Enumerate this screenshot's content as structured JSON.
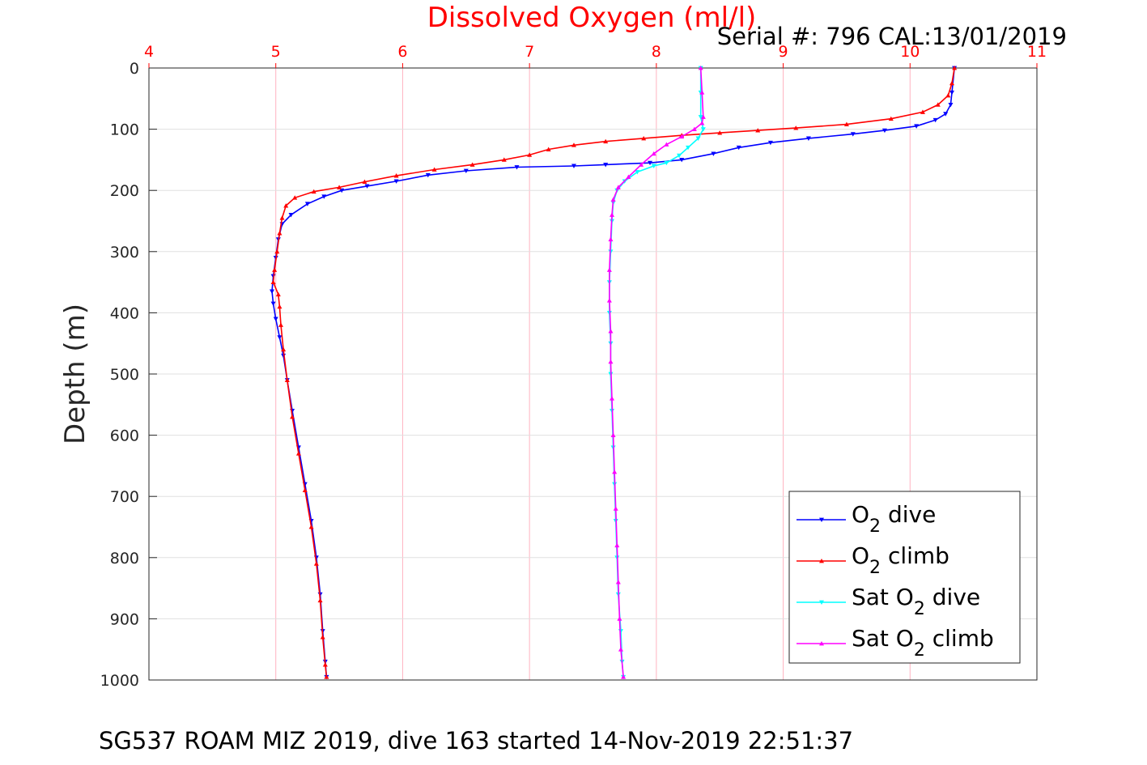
{
  "chart_data": {
    "type": "scatter",
    "title": "Dissolved Oxygen (ml/l)",
    "ylabel": "Depth (m)",
    "xlim": [
      4,
      11
    ],
    "ylim": [
      1000,
      0
    ],
    "y_inverted": true,
    "x_axis_position": "top",
    "x_ticks": [
      "4",
      "5",
      "6",
      "7",
      "8",
      "9",
      "10",
      "11"
    ],
    "y_ticks": [
      "0",
      "100",
      "200",
      "300",
      "400",
      "500",
      "600",
      "700",
      "800",
      "900",
      "1000"
    ],
    "grid": true,
    "legend_position": "bottom-right",
    "series": [
      {
        "name": "O2 dive",
        "legend_base": "O",
        "legend_sub": "2",
        "legend_rest": " dive",
        "color": "#0000ff",
        "marker": "triangle-down",
        "points": [
          [
            10.35,
            0
          ],
          [
            10.33,
            40
          ],
          [
            10.32,
            60
          ],
          [
            10.28,
            75
          ],
          [
            10.2,
            85
          ],
          [
            10.05,
            95
          ],
          [
            9.8,
            102
          ],
          [
            9.55,
            108
          ],
          [
            9.2,
            115
          ],
          [
            8.9,
            122
          ],
          [
            8.65,
            130
          ],
          [
            8.45,
            140
          ],
          [
            8.2,
            150
          ],
          [
            7.95,
            155
          ],
          [
            7.6,
            158
          ],
          [
            7.35,
            160
          ],
          [
            6.9,
            162
          ],
          [
            6.5,
            168
          ],
          [
            6.2,
            175
          ],
          [
            5.95,
            185
          ],
          [
            5.72,
            193
          ],
          [
            5.52,
            200
          ],
          [
            5.38,
            210
          ],
          [
            5.25,
            222
          ],
          [
            5.12,
            240
          ],
          [
            5.05,
            255
          ],
          [
            5.02,
            280
          ],
          [
            5.0,
            310
          ],
          [
            4.98,
            340
          ],
          [
            4.97,
            365
          ],
          [
            4.98,
            385
          ],
          [
            5.0,
            410
          ],
          [
            5.03,
            440
          ],
          [
            5.06,
            470
          ],
          [
            5.09,
            510
          ],
          [
            5.13,
            560
          ],
          [
            5.18,
            620
          ],
          [
            5.23,
            680
          ],
          [
            5.28,
            740
          ],
          [
            5.32,
            800
          ],
          [
            5.35,
            860
          ],
          [
            5.37,
            920
          ],
          [
            5.39,
            970
          ],
          [
            5.4,
            995
          ]
        ]
      },
      {
        "name": "O2 climb",
        "legend_base": "O",
        "legend_sub": "2",
        "legend_rest": " climb",
        "color": "#ff0000",
        "marker": "triangle-up",
        "points": [
          [
            10.35,
            0
          ],
          [
            10.33,
            25
          ],
          [
            10.3,
            45
          ],
          [
            10.22,
            60
          ],
          [
            10.1,
            72
          ],
          [
            9.85,
            83
          ],
          [
            9.5,
            92
          ],
          [
            9.1,
            98
          ],
          [
            8.8,
            102
          ],
          [
            8.5,
            106
          ],
          [
            8.2,
            110
          ],
          [
            7.9,
            115
          ],
          [
            7.6,
            120
          ],
          [
            7.35,
            126
          ],
          [
            7.15,
            133
          ],
          [
            7.0,
            142
          ],
          [
            6.8,
            150
          ],
          [
            6.55,
            158
          ],
          [
            6.25,
            166
          ],
          [
            5.95,
            176
          ],
          [
            5.7,
            186
          ],
          [
            5.5,
            195
          ],
          [
            5.3,
            202
          ],
          [
            5.15,
            212
          ],
          [
            5.08,
            225
          ],
          [
            5.05,
            245
          ],
          [
            5.03,
            270
          ],
          [
            5.01,
            300
          ],
          [
            4.99,
            330
          ],
          [
            4.98,
            350
          ],
          [
            5.02,
            370
          ],
          [
            5.03,
            390
          ],
          [
            5.04,
            420
          ],
          [
            5.06,
            460
          ],
          [
            5.09,
            510
          ],
          [
            5.13,
            570
          ],
          [
            5.18,
            630
          ],
          [
            5.23,
            690
          ],
          [
            5.28,
            750
          ],
          [
            5.32,
            810
          ],
          [
            5.35,
            870
          ],
          [
            5.37,
            930
          ],
          [
            5.39,
            975
          ],
          [
            5.4,
            995
          ]
        ]
      },
      {
        "name": "Sat O2 dive",
        "legend_base": "Sat O",
        "legend_sub": "2",
        "legend_rest": " dive",
        "color": "#00ffff",
        "marker": "triangle-down",
        "points": [
          [
            8.35,
            0
          ],
          [
            8.35,
            40
          ],
          [
            8.35,
            80
          ],
          [
            8.37,
            100
          ],
          [
            8.33,
            115
          ],
          [
            8.25,
            130
          ],
          [
            8.18,
            143
          ],
          [
            8.08,
            155
          ],
          [
            7.98,
            160
          ],
          [
            7.85,
            170
          ],
          [
            7.75,
            185
          ],
          [
            7.69,
            200
          ],
          [
            7.66,
            220
          ],
          [
            7.65,
            250
          ],
          [
            7.64,
            300
          ],
          [
            7.63,
            350
          ],
          [
            7.63,
            400
          ],
          [
            7.64,
            450
          ],
          [
            7.64,
            500
          ],
          [
            7.65,
            560
          ],
          [
            7.66,
            620
          ],
          [
            7.67,
            680
          ],
          [
            7.68,
            740
          ],
          [
            7.69,
            800
          ],
          [
            7.7,
            860
          ],
          [
            7.72,
            920
          ],
          [
            7.73,
            970
          ],
          [
            7.74,
            995
          ]
        ]
      },
      {
        "name": "Sat O2 climb",
        "legend_base": "Sat O",
        "legend_sub": "2",
        "legend_rest": " climb",
        "color": "#ff00ff",
        "marker": "triangle-up",
        "points": [
          [
            8.35,
            0
          ],
          [
            8.36,
            40
          ],
          [
            8.37,
            80
          ],
          [
            8.36,
            90
          ],
          [
            8.3,
            100
          ],
          [
            8.2,
            112
          ],
          [
            8.08,
            125
          ],
          [
            7.98,
            140
          ],
          [
            7.88,
            158
          ],
          [
            7.78,
            178
          ],
          [
            7.7,
            195
          ],
          [
            7.66,
            215
          ],
          [
            7.65,
            240
          ],
          [
            7.64,
            280
          ],
          [
            7.63,
            330
          ],
          [
            7.63,
            380
          ],
          [
            7.64,
            430
          ],
          [
            7.64,
            480
          ],
          [
            7.65,
            540
          ],
          [
            7.66,
            600
          ],
          [
            7.67,
            660
          ],
          [
            7.68,
            720
          ],
          [
            7.69,
            780
          ],
          [
            7.7,
            840
          ],
          [
            7.71,
            900
          ],
          [
            7.72,
            950
          ],
          [
            7.74,
            995
          ]
        ]
      }
    ]
  },
  "serial_label": "Serial #: 796  CAL:13/01/2019",
  "footer_caption": "SG537 ROAM MIZ 2019, dive 163 started 14-Nov-2019 22:51:37"
}
